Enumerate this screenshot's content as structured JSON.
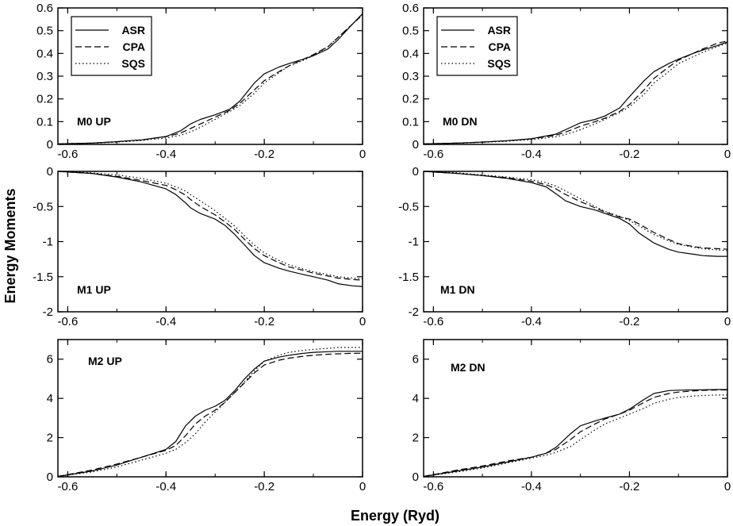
{
  "figure": {
    "xlabel": "Energy (Ryd)",
    "ylabel": "Energy Moments"
  },
  "legend": {
    "entries": [
      {
        "label": "ASR",
        "dash": "solid"
      },
      {
        "label": "CPA",
        "dash": "dashed"
      },
      {
        "label": "SQS",
        "dash": "dotted"
      }
    ]
  },
  "chart_data": [
    {
      "type": "line",
      "panel": "M0 UP",
      "label": "M0  UP",
      "xlim": [
        -0.62,
        0
      ],
      "ylim": [
        0,
        0.6
      ],
      "xticks": [
        -0.6,
        -0.4,
        -0.2,
        0
      ],
      "xtick_labels": [
        "-0.6",
        "-0.4",
        "-0.2",
        "0"
      ],
      "yticks": [
        0,
        0.1,
        0.2,
        0.3,
        0.4,
        0.5,
        0.6
      ],
      "ytick_labels": [
        "0",
        "0.1",
        "0.2",
        "0.3",
        "0.4",
        "0.5",
        "0.6"
      ],
      "series": [
        {
          "name": "ASR",
          "x": [
            -0.62,
            -0.55,
            -0.5,
            -0.45,
            -0.4,
            -0.37,
            -0.35,
            -0.33,
            -0.3,
            -0.27,
            -0.25,
            -0.22,
            -0.2,
            -0.17,
            -0.15,
            -0.12,
            -0.1,
            -0.07,
            -0.05,
            -0.02,
            0
          ],
          "y": [
            0.002,
            0.006,
            0.012,
            0.02,
            0.035,
            0.06,
            0.09,
            0.11,
            0.13,
            0.155,
            0.19,
            0.27,
            0.31,
            0.34,
            0.355,
            0.375,
            0.39,
            0.42,
            0.46,
            0.53,
            0.575
          ]
        },
        {
          "name": "CPA",
          "x": [
            -0.62,
            -0.55,
            -0.5,
            -0.45,
            -0.4,
            -0.37,
            -0.35,
            -0.33,
            -0.3,
            -0.27,
            -0.25,
            -0.22,
            -0.2,
            -0.17,
            -0.15,
            -0.12,
            -0.1,
            -0.07,
            -0.05,
            -0.02,
            0
          ],
          "y": [
            0.002,
            0.006,
            0.012,
            0.02,
            0.034,
            0.05,
            0.07,
            0.09,
            0.12,
            0.15,
            0.18,
            0.24,
            0.28,
            0.32,
            0.345,
            0.375,
            0.395,
            0.43,
            0.47,
            0.53,
            0.57
          ]
        },
        {
          "name": "SQS",
          "x": [
            -0.62,
            -0.55,
            -0.5,
            -0.45,
            -0.4,
            -0.37,
            -0.35,
            -0.33,
            -0.3,
            -0.27,
            -0.25,
            -0.22,
            -0.2,
            -0.17,
            -0.15,
            -0.12,
            -0.1,
            -0.07,
            -0.05,
            -0.02,
            0
          ],
          "y": [
            0.002,
            0.005,
            0.01,
            0.017,
            0.028,
            0.04,
            0.055,
            0.075,
            0.11,
            0.145,
            0.17,
            0.225,
            0.27,
            0.315,
            0.345,
            0.37,
            0.39,
            0.43,
            0.47,
            0.53,
            0.57
          ]
        }
      ]
    },
    {
      "type": "line",
      "panel": "M0 DN",
      "label": "M0  DN",
      "xlim": [
        -0.62,
        0
      ],
      "ylim": [
        0,
        0.6
      ],
      "xticks": [
        -0.6,
        -0.4,
        -0.2,
        0
      ],
      "xtick_labels": [
        "-0.6",
        "-0.4",
        "-0.2",
        "0"
      ],
      "yticks": [
        0,
        0.1,
        0.2,
        0.3,
        0.4,
        0.5,
        0.6
      ],
      "ytick_labels": [
        "0",
        "0.1",
        "0.2",
        "0.3",
        "0.4",
        "0.5",
        "0.6"
      ],
      "series": [
        {
          "name": "ASR",
          "x": [
            -0.62,
            -0.55,
            -0.5,
            -0.45,
            -0.4,
            -0.35,
            -0.32,
            -0.3,
            -0.27,
            -0.25,
            -0.22,
            -0.2,
            -0.17,
            -0.15,
            -0.12,
            -0.1,
            -0.07,
            -0.05,
            -0.02,
            0
          ],
          "y": [
            0.002,
            0.006,
            0.01,
            0.016,
            0.025,
            0.045,
            0.075,
            0.095,
            0.11,
            0.125,
            0.16,
            0.21,
            0.28,
            0.32,
            0.355,
            0.375,
            0.4,
            0.415,
            0.435,
            0.45
          ]
        },
        {
          "name": "CPA",
          "x": [
            -0.62,
            -0.55,
            -0.5,
            -0.45,
            -0.4,
            -0.35,
            -0.32,
            -0.3,
            -0.27,
            -0.25,
            -0.22,
            -0.2,
            -0.17,
            -0.15,
            -0.12,
            -0.1,
            -0.07,
            -0.05,
            -0.02,
            0
          ],
          "y": [
            0.002,
            0.006,
            0.01,
            0.016,
            0.024,
            0.04,
            0.062,
            0.08,
            0.1,
            0.115,
            0.145,
            0.175,
            0.24,
            0.29,
            0.34,
            0.37,
            0.4,
            0.42,
            0.445,
            0.455
          ]
        },
        {
          "name": "SQS",
          "x": [
            -0.62,
            -0.55,
            -0.5,
            -0.45,
            -0.4,
            -0.35,
            -0.32,
            -0.3,
            -0.27,
            -0.25,
            -0.22,
            -0.2,
            -0.17,
            -0.15,
            -0.12,
            -0.1,
            -0.07,
            -0.05,
            -0.02,
            0
          ],
          "y": [
            0.002,
            0.005,
            0.009,
            0.014,
            0.021,
            0.033,
            0.05,
            0.065,
            0.09,
            0.11,
            0.14,
            0.165,
            0.22,
            0.27,
            0.32,
            0.355,
            0.385,
            0.405,
            0.43,
            0.445
          ]
        }
      ]
    },
    {
      "type": "line",
      "panel": "M1 UP",
      "label": "M1  UP",
      "xlim": [
        -0.62,
        0
      ],
      "ylim": [
        -2,
        0
      ],
      "xticks": [
        -0.6,
        -0.4,
        -0.2,
        0
      ],
      "xtick_labels": [
        "-0.6",
        "-0.4",
        "-0.2",
        "0"
      ],
      "yticks": [
        -2,
        -1.5,
        -1,
        -0.5,
        0
      ],
      "ytick_labels": [
        "-2",
        "-1.5",
        "-1",
        "-0.5",
        "0"
      ],
      "series": [
        {
          "name": "ASR",
          "x": [
            -0.62,
            -0.55,
            -0.5,
            -0.45,
            -0.4,
            -0.38,
            -0.36,
            -0.35,
            -0.33,
            -0.3,
            -0.28,
            -0.26,
            -0.24,
            -0.22,
            -0.2,
            -0.17,
            -0.15,
            -0.12,
            -0.1,
            -0.07,
            -0.05,
            -0.02,
            0
          ],
          "y": [
            0,
            -0.03,
            -0.08,
            -0.15,
            -0.25,
            -0.33,
            -0.45,
            -0.52,
            -0.6,
            -0.68,
            -0.77,
            -0.9,
            -1.05,
            -1.2,
            -1.3,
            -1.38,
            -1.42,
            -1.47,
            -1.5,
            -1.55,
            -1.6,
            -1.63,
            -1.64
          ]
        },
        {
          "name": "CPA",
          "x": [
            -0.62,
            -0.55,
            -0.5,
            -0.45,
            -0.4,
            -0.38,
            -0.36,
            -0.35,
            -0.33,
            -0.3,
            -0.28,
            -0.26,
            -0.24,
            -0.22,
            -0.2,
            -0.17,
            -0.15,
            -0.12,
            -0.1,
            -0.07,
            -0.05,
            -0.02,
            0
          ],
          "y": [
            0,
            -0.03,
            -0.07,
            -0.13,
            -0.2,
            -0.26,
            -0.34,
            -0.4,
            -0.5,
            -0.62,
            -0.72,
            -0.83,
            -0.97,
            -1.1,
            -1.2,
            -1.3,
            -1.36,
            -1.41,
            -1.45,
            -1.49,
            -1.52,
            -1.54,
            -1.55
          ]
        },
        {
          "name": "SQS",
          "x": [
            -0.62,
            -0.55,
            -0.5,
            -0.45,
            -0.4,
            -0.38,
            -0.36,
            -0.35,
            -0.33,
            -0.3,
            -0.28,
            -0.26,
            -0.24,
            -0.22,
            -0.2,
            -0.17,
            -0.15,
            -0.12,
            -0.1,
            -0.07,
            -0.05,
            -0.02,
            0
          ],
          "y": [
            0,
            -0.02,
            -0.05,
            -0.1,
            -0.17,
            -0.22,
            -0.28,
            -0.33,
            -0.42,
            -0.56,
            -0.67,
            -0.78,
            -0.92,
            -1.05,
            -1.16,
            -1.27,
            -1.33,
            -1.39,
            -1.43,
            -1.47,
            -1.5,
            -1.52,
            -1.53
          ]
        }
      ]
    },
    {
      "type": "line",
      "panel": "M1 DN",
      "label": "M1  DN",
      "xlim": [
        -0.62,
        0
      ],
      "ylim": [
        -2,
        0
      ],
      "xticks": [
        -0.6,
        -0.4,
        -0.2,
        0
      ],
      "xtick_labels": [
        "-0.6",
        "-0.4",
        "-0.2",
        "0"
      ],
      "yticks": [
        -2,
        -1.5,
        -1,
        -0.5,
        0
      ],
      "ytick_labels": [
        "-2",
        "-1.5",
        "-1",
        "-0.5",
        "0"
      ],
      "series": [
        {
          "name": "ASR",
          "x": [
            -0.62,
            -0.55,
            -0.5,
            -0.45,
            -0.4,
            -0.37,
            -0.35,
            -0.33,
            -0.3,
            -0.27,
            -0.25,
            -0.22,
            -0.2,
            -0.18,
            -0.15,
            -0.12,
            -0.1,
            -0.07,
            -0.05,
            -0.02,
            0
          ],
          "y": [
            0,
            -0.03,
            -0.06,
            -0.1,
            -0.16,
            -0.22,
            -0.32,
            -0.42,
            -0.5,
            -0.55,
            -0.6,
            -0.67,
            -0.75,
            -0.88,
            -1.02,
            -1.11,
            -1.15,
            -1.18,
            -1.2,
            -1.21,
            -1.21
          ]
        },
        {
          "name": "CPA",
          "x": [
            -0.62,
            -0.55,
            -0.5,
            -0.45,
            -0.4,
            -0.37,
            -0.35,
            -0.33,
            -0.3,
            -0.27,
            -0.25,
            -0.22,
            -0.2,
            -0.18,
            -0.15,
            -0.12,
            -0.1,
            -0.07,
            -0.05,
            -0.02,
            0
          ],
          "y": [
            0,
            -0.03,
            -0.06,
            -0.09,
            -0.14,
            -0.19,
            -0.25,
            -0.33,
            -0.43,
            -0.52,
            -0.58,
            -0.65,
            -0.68,
            -0.75,
            -0.87,
            -0.97,
            -1.03,
            -1.07,
            -1.09,
            -1.1,
            -1.11
          ]
        },
        {
          "name": "SQS",
          "x": [
            -0.62,
            -0.55,
            -0.5,
            -0.45,
            -0.4,
            -0.37,
            -0.35,
            -0.33,
            -0.3,
            -0.27,
            -0.25,
            -0.22,
            -0.2,
            -0.18,
            -0.15,
            -0.12,
            -0.1,
            -0.07,
            -0.05,
            -0.02,
            0
          ],
          "y": [
            0,
            -0.02,
            -0.05,
            -0.08,
            -0.12,
            -0.16,
            -0.21,
            -0.28,
            -0.39,
            -0.5,
            -0.57,
            -0.64,
            -0.7,
            -0.78,
            -0.9,
            -0.99,
            -1.04,
            -1.08,
            -1.1,
            -1.12,
            -1.13
          ]
        }
      ]
    },
    {
      "type": "line",
      "panel": "M2 UP",
      "label": "M2  UP",
      "xlim": [
        -0.62,
        0
      ],
      "ylim": [
        0,
        7
      ],
      "xticks": [
        -0.6,
        -0.4,
        -0.2,
        0
      ],
      "xtick_labels": [
        "-0.6",
        "-0.4",
        "-0.2",
        "0"
      ],
      "yticks": [
        0,
        2,
        4,
        6
      ],
      "ytick_labels": [
        "0",
        "2",
        "4",
        "6"
      ],
      "series": [
        {
          "name": "ASR",
          "x": [
            -0.62,
            -0.55,
            -0.5,
            -0.45,
            -0.4,
            -0.38,
            -0.36,
            -0.34,
            -0.32,
            -0.3,
            -0.28,
            -0.26,
            -0.24,
            -0.22,
            -0.2,
            -0.17,
            -0.15,
            -0.12,
            -0.1,
            -0.07,
            -0.05,
            -0.02,
            0
          ],
          "y": [
            0.02,
            0.3,
            0.6,
            1.0,
            1.4,
            1.8,
            2.6,
            3.1,
            3.4,
            3.6,
            3.9,
            4.4,
            5.0,
            5.5,
            5.9,
            6.1,
            6.2,
            6.3,
            6.35,
            6.38,
            6.4,
            6.4,
            6.4
          ]
        },
        {
          "name": "CPA",
          "x": [
            -0.62,
            -0.55,
            -0.5,
            -0.45,
            -0.4,
            -0.38,
            -0.36,
            -0.34,
            -0.32,
            -0.3,
            -0.28,
            -0.26,
            -0.24,
            -0.22,
            -0.2,
            -0.17,
            -0.15,
            -0.12,
            -0.1,
            -0.07,
            -0.05,
            -0.02,
            0
          ],
          "y": [
            0.02,
            0.35,
            0.65,
            1.0,
            1.35,
            1.6,
            2.1,
            2.7,
            3.1,
            3.4,
            3.8,
            4.3,
            4.8,
            5.3,
            5.7,
            5.95,
            6.05,
            6.15,
            6.2,
            6.25,
            6.27,
            6.3,
            6.3
          ]
        },
        {
          "name": "SQS",
          "x": [
            -0.62,
            -0.55,
            -0.5,
            -0.45,
            -0.4,
            -0.38,
            -0.36,
            -0.34,
            -0.32,
            -0.3,
            -0.28,
            -0.26,
            -0.24,
            -0.22,
            -0.2,
            -0.17,
            -0.15,
            -0.12,
            -0.1,
            -0.07,
            -0.05,
            -0.02,
            0
          ],
          "y": [
            0.02,
            0.25,
            0.5,
            0.85,
            1.2,
            1.4,
            1.75,
            2.2,
            2.8,
            3.3,
            3.8,
            4.3,
            4.85,
            5.4,
            5.9,
            6.2,
            6.35,
            6.45,
            6.5,
            6.55,
            6.6,
            6.6,
            6.6
          ]
        }
      ]
    },
    {
      "type": "line",
      "panel": "M2 DN",
      "label": "M2  DN",
      "xlim": [
        -0.62,
        0
      ],
      "ylim": [
        0,
        7
      ],
      "xticks": [
        -0.6,
        -0.4,
        -0.2,
        0
      ],
      "xtick_labels": [
        "-0.6",
        "-0.4",
        "-0.2",
        "0"
      ],
      "yticks": [
        0,
        2,
        4,
        6
      ],
      "ytick_labels": [
        "0",
        "2",
        "4",
        "6"
      ],
      "series": [
        {
          "name": "ASR",
          "x": [
            -0.62,
            -0.55,
            -0.5,
            -0.45,
            -0.4,
            -0.37,
            -0.35,
            -0.32,
            -0.3,
            -0.27,
            -0.25,
            -0.22,
            -0.2,
            -0.17,
            -0.15,
            -0.12,
            -0.1,
            -0.07,
            -0.05,
            -0.02,
            0
          ],
          "y": [
            0.02,
            0.3,
            0.5,
            0.75,
            1.0,
            1.2,
            1.5,
            2.2,
            2.6,
            2.85,
            3.0,
            3.2,
            3.45,
            3.95,
            4.25,
            4.4,
            4.42,
            4.43,
            4.44,
            4.45,
            4.45
          ]
        },
        {
          "name": "CPA",
          "x": [
            -0.62,
            -0.55,
            -0.5,
            -0.45,
            -0.4,
            -0.37,
            -0.35,
            -0.32,
            -0.3,
            -0.27,
            -0.25,
            -0.22,
            -0.2,
            -0.17,
            -0.15,
            -0.12,
            -0.1,
            -0.07,
            -0.05,
            -0.02,
            0
          ],
          "y": [
            0.02,
            0.35,
            0.55,
            0.8,
            1.0,
            1.2,
            1.4,
            1.9,
            2.3,
            2.7,
            2.95,
            3.2,
            3.4,
            3.8,
            4.05,
            4.25,
            4.32,
            4.38,
            4.41,
            4.43,
            4.43
          ]
        },
        {
          "name": "SQS",
          "x": [
            -0.62,
            -0.55,
            -0.5,
            -0.45,
            -0.4,
            -0.37,
            -0.35,
            -0.32,
            -0.3,
            -0.27,
            -0.25,
            -0.22,
            -0.2,
            -0.17,
            -0.15,
            -0.12,
            -0.1,
            -0.07,
            -0.05,
            -0.02,
            0
          ],
          "y": [
            0.02,
            0.25,
            0.45,
            0.7,
            0.95,
            1.1,
            1.25,
            1.55,
            1.9,
            2.4,
            2.7,
            3.0,
            3.2,
            3.5,
            3.75,
            3.95,
            4.05,
            4.12,
            4.15,
            4.17,
            4.17
          ]
        }
      ]
    }
  ]
}
